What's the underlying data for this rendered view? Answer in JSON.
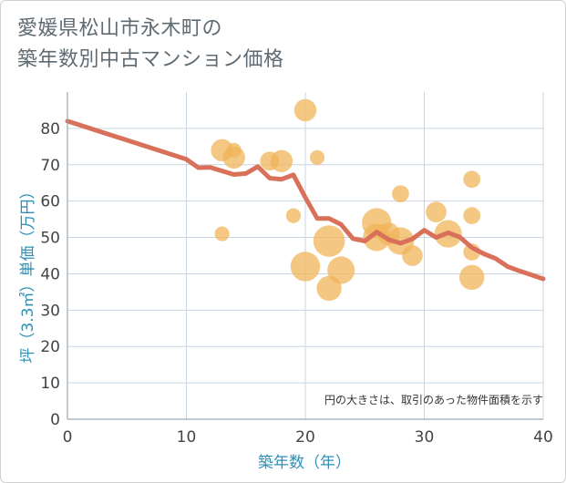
{
  "title_lines": [
    "愛媛県松山市永木町の",
    "築年数別中古マンション価格"
  ],
  "chart_data": {
    "type": "scatter",
    "xlabel": "築年数（年）",
    "ylabel": "坪（3.3㎡）単価（万円）",
    "xlim": [
      0,
      40
    ],
    "ylim": [
      0,
      90
    ],
    "xticks": [
      0,
      10,
      20,
      30,
      40
    ],
    "yticks": [
      0,
      10,
      20,
      30,
      40,
      50,
      60,
      70,
      80
    ],
    "grid": true,
    "note": "円の大きさは、取引のあった物件面積を示す",
    "colors": {
      "bubble": "#f0b45a",
      "line": "#d9705a",
      "grid": "#c9d6e2",
      "axis": "#9aa7b3"
    },
    "bubbles": [
      {
        "x": 13,
        "y": 74,
        "size": 3
      },
      {
        "x": 14,
        "y": 72,
        "size": 3
      },
      {
        "x": 14,
        "y": 74,
        "size": 1
      },
      {
        "x": 13,
        "y": 51,
        "size": 1
      },
      {
        "x": 17,
        "y": 71,
        "size": 2
      },
      {
        "x": 18,
        "y": 71,
        "size": 3
      },
      {
        "x": 19,
        "y": 56,
        "size": 1
      },
      {
        "x": 20,
        "y": 85,
        "size": 3
      },
      {
        "x": 20,
        "y": 42,
        "size": 6
      },
      {
        "x": 21,
        "y": 72,
        "size": 1
      },
      {
        "x": 22,
        "y": 49,
        "size": 7
      },
      {
        "x": 22,
        "y": 36,
        "size": 4
      },
      {
        "x": 23,
        "y": 41,
        "size": 5
      },
      {
        "x": 26,
        "y": 54,
        "size": 6
      },
      {
        "x": 26,
        "y": 50,
        "size": 5
      },
      {
        "x": 27,
        "y": 51,
        "size": 3
      },
      {
        "x": 28,
        "y": 62,
        "size": 1.5
      },
      {
        "x": 28,
        "y": 49,
        "size": 5
      },
      {
        "x": 29,
        "y": 45,
        "size": 2.5
      },
      {
        "x": 31,
        "y": 57,
        "size": 2.5
      },
      {
        "x": 32,
        "y": 51,
        "size": 5
      },
      {
        "x": 34,
        "y": 66,
        "size": 1.5
      },
      {
        "x": 34,
        "y": 56,
        "size": 1.5
      },
      {
        "x": 34,
        "y": 46,
        "size": 1.5
      },
      {
        "x": 34,
        "y": 39,
        "size": 4
      }
    ],
    "trend": {
      "x": [
        0,
        10,
        11,
        12,
        13,
        14,
        15,
        16,
        17,
        18,
        19,
        20,
        21,
        22,
        23,
        24,
        25,
        26,
        27,
        28,
        29,
        30,
        31,
        32,
        33,
        34,
        35,
        36,
        37,
        38,
        39,
        40
      ],
      "y": [
        82,
        71.5,
        69.2,
        69.3,
        68.3,
        67.3,
        67.6,
        69.5,
        66.3,
        66,
        67.2,
        61,
        55.2,
        55.2,
        53.6,
        49.7,
        49,
        51.5,
        49.4,
        48.4,
        49.6,
        52,
        50,
        51.3,
        50.1,
        47.2,
        45.5,
        44.2,
        42,
        40.8,
        39.7,
        38.6
      ]
    }
  }
}
